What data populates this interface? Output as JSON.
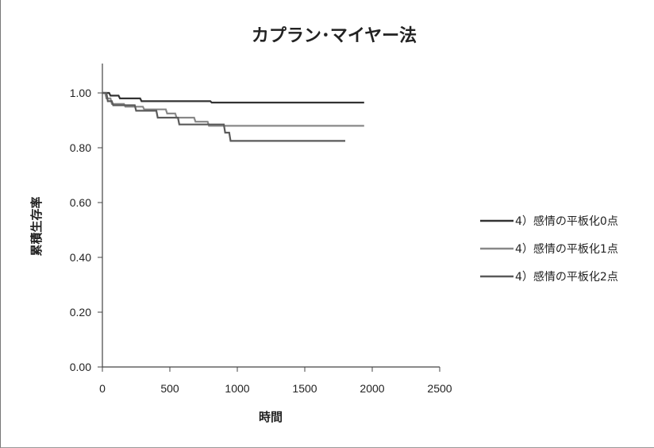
{
  "chart_data": {
    "type": "line",
    "title": "カプラン･マイヤー法",
    "xlabel": "時間",
    "ylabel": "累積生存率",
    "xlim": [
      0,
      2500
    ],
    "ylim": [
      0,
      1
    ],
    "x_ticks": [
      0,
      500,
      1000,
      1500,
      2000,
      2500
    ],
    "x_tick_labels": [
      "0",
      "500",
      "1000",
      "1500",
      "2000",
      "2500"
    ],
    "y_ticks": [
      0,
      0.2,
      0.4,
      0.6,
      0.8,
      1.0
    ],
    "y_tick_labels": [
      "0.00",
      "0.20",
      "0.40",
      "0.60",
      "0.80",
      "1.00"
    ],
    "grid": false,
    "legend_position": "right",
    "series": [
      {
        "name": "4）感情の平板化0点",
        "color": "#333333",
        "x": [
          0,
          50,
          60,
          120,
          130,
          280,
          290,
          800,
          810,
          1940
        ],
        "y": [
          1.0,
          1.0,
          0.99,
          0.99,
          0.98,
          0.98,
          0.97,
          0.97,
          0.965,
          0.965
        ]
      },
      {
        "name": "4）感情の平板化1点",
        "color": "#888888",
        "x": [
          0,
          20,
          30,
          60,
          70,
          160,
          170,
          300,
          310,
          470,
          480,
          540,
          550,
          680,
          690,
          780,
          790,
          1940
        ],
        "y": [
          1.0,
          1.0,
          0.98,
          0.98,
          0.96,
          0.96,
          0.95,
          0.95,
          0.94,
          0.94,
          0.925,
          0.925,
          0.91,
          0.91,
          0.895,
          0.895,
          0.88,
          0.88
        ]
      },
      {
        "name": "4）感情の平板化2点",
        "color": "#5a5a5a",
        "x": [
          0,
          30,
          40,
          70,
          80,
          240,
          250,
          400,
          410,
          560,
          570,
          900,
          910,
          940,
          950,
          1800
        ],
        "y": [
          1.0,
          1.0,
          0.97,
          0.97,
          0.955,
          0.955,
          0.935,
          0.935,
          0.91,
          0.91,
          0.885,
          0.885,
          0.855,
          0.855,
          0.825,
          0.825
        ]
      }
    ]
  }
}
